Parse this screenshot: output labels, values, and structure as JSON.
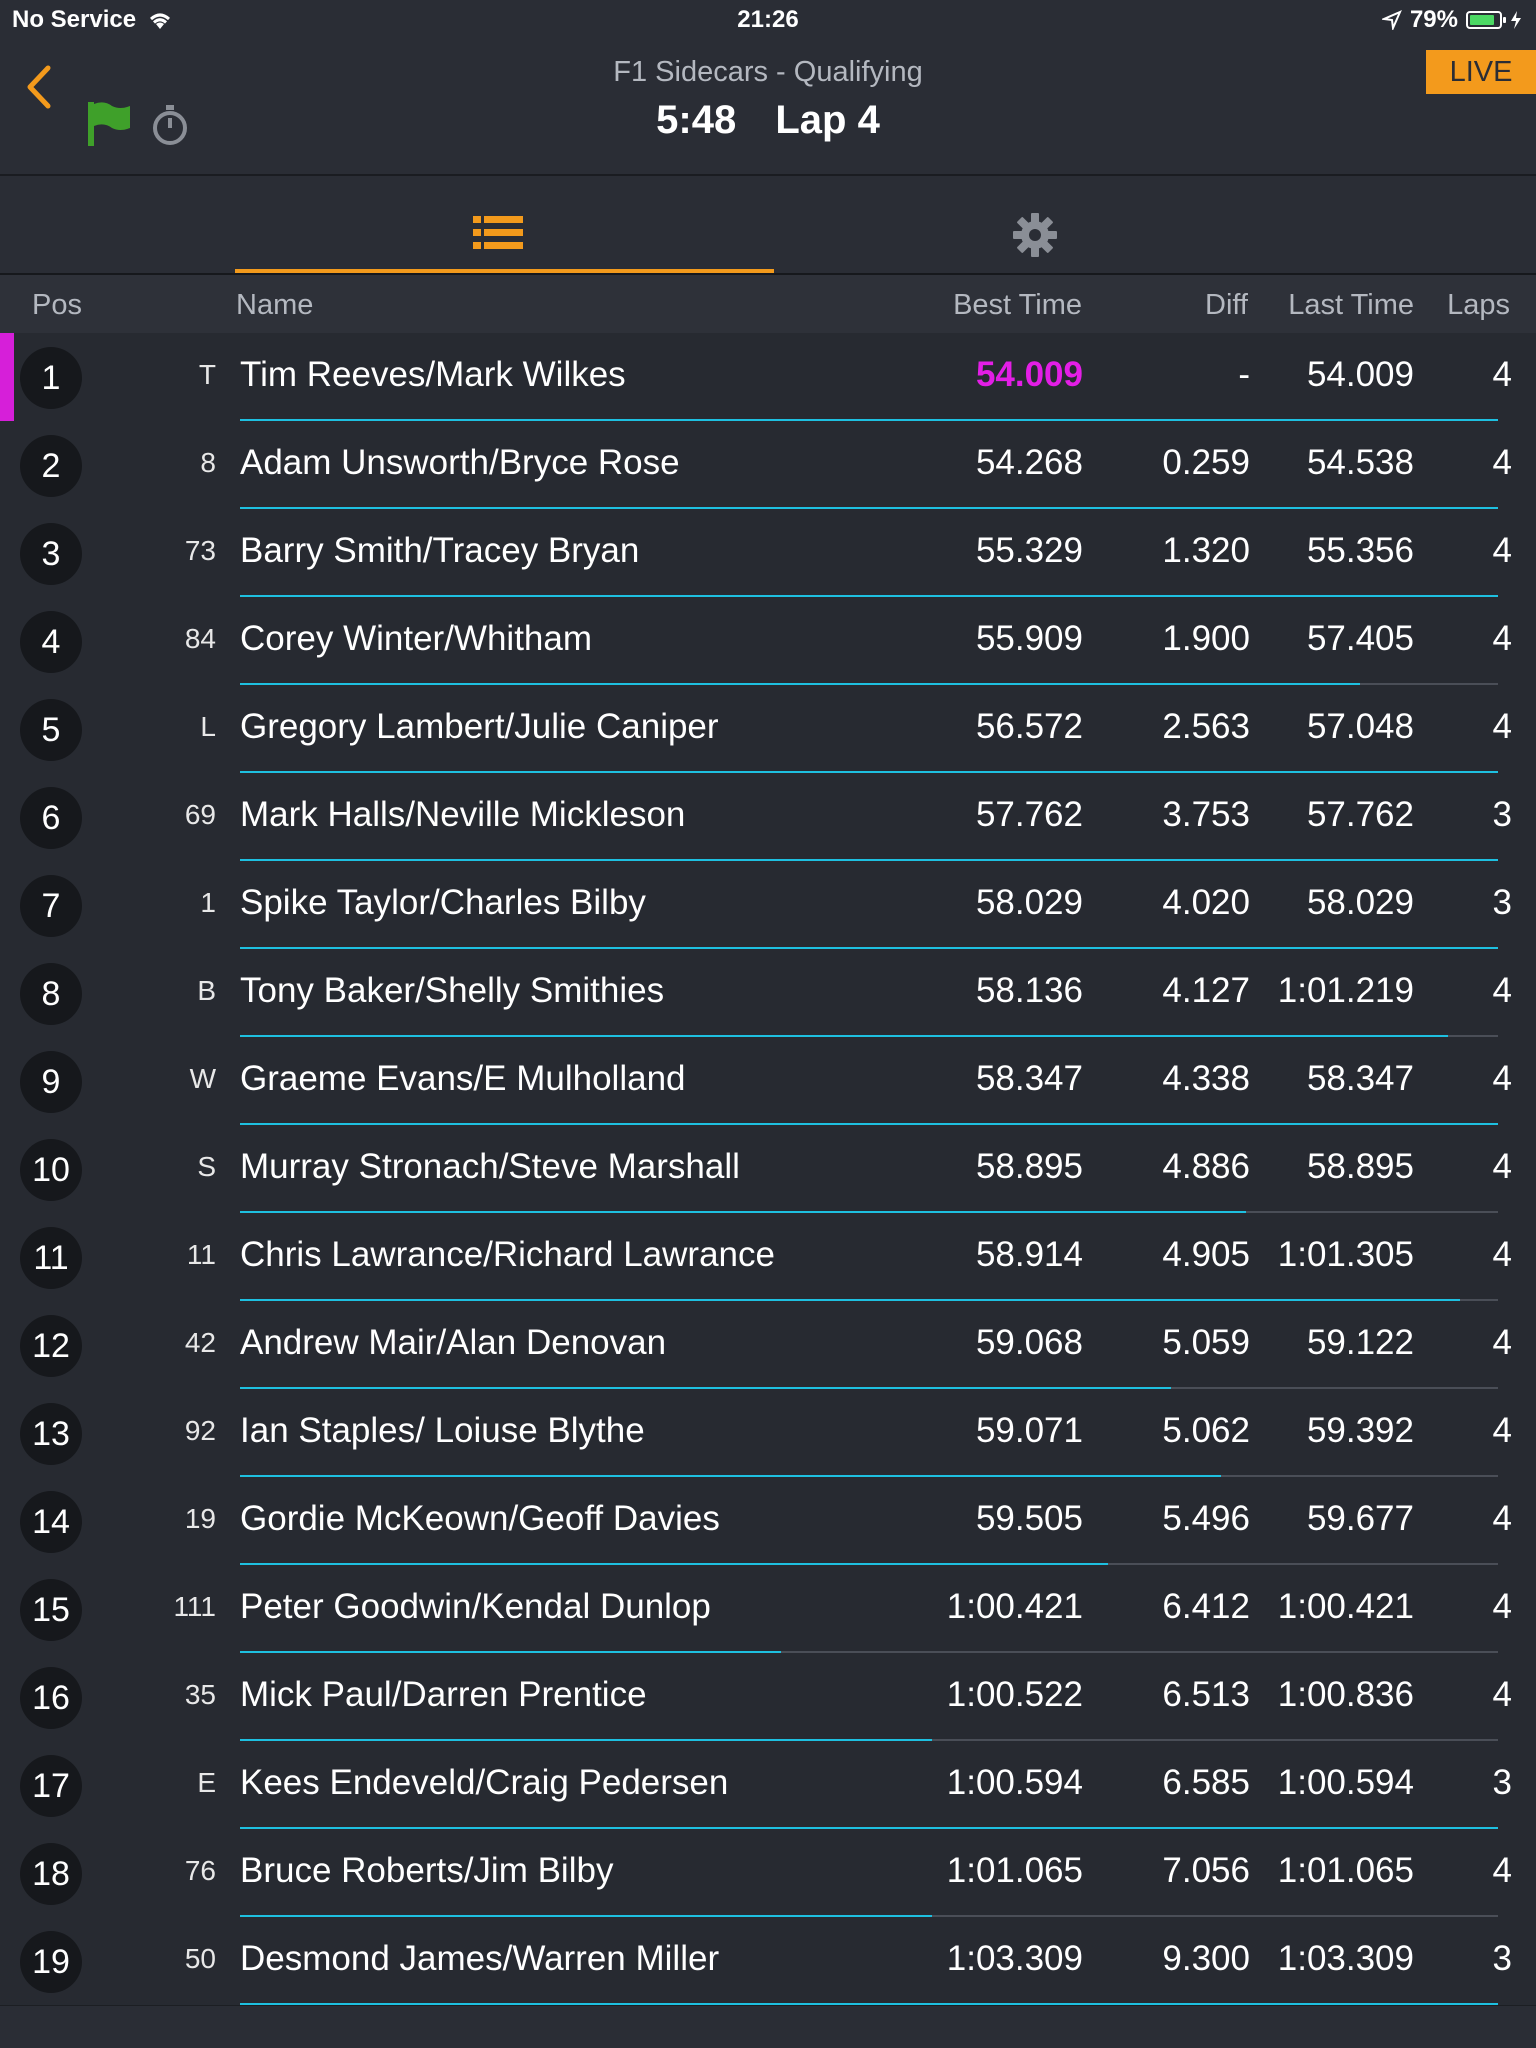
{
  "status": {
    "carrier": "No Service",
    "time": "21:26",
    "battery": "79%"
  },
  "header": {
    "subtitle": "F1 Sidecars - Qualifying",
    "time_remaining": "5:48",
    "lap": "Lap 4",
    "live_label": "LIVE"
  },
  "colors": {
    "accent": "#f39a1c",
    "fastest": "#e31ee6",
    "progress": "#1ec0e0",
    "flag": "#3fa02a"
  },
  "columns": {
    "pos": "Pos",
    "name": "Name",
    "best": "Best Time",
    "diff": "Diff",
    "last": "Last Time",
    "laps": "Laps"
  },
  "rows": [
    {
      "pos": "1",
      "num": "T",
      "name": "Tim Reeves/Mark Wilkes",
      "best": "54.009",
      "diff": "-",
      "last": "54.009",
      "laps": "4",
      "progress": 1.0
    },
    {
      "pos": "2",
      "num": "8",
      "name": "Adam Unsworth/Bryce Rose",
      "best": "54.268",
      "diff": "0.259",
      "last": "54.538",
      "laps": "4",
      "progress": 1.0
    },
    {
      "pos": "3",
      "num": "73",
      "name": "Barry Smith/Tracey Bryan",
      "best": "55.329",
      "diff": "1.320",
      "last": "55.356",
      "laps": "4",
      "progress": 1.0
    },
    {
      "pos": "4",
      "num": "84",
      "name": "Corey Winter/Whitham",
      "best": "55.909",
      "diff": "1.900",
      "last": "57.405",
      "laps": "4",
      "progress": 0.89
    },
    {
      "pos": "5",
      "num": "L",
      "name": "Gregory Lambert/Julie Caniper",
      "best": "56.572",
      "diff": "2.563",
      "last": "57.048",
      "laps": "4",
      "progress": 1.0
    },
    {
      "pos": "6",
      "num": "69",
      "name": "Mark Halls/Neville Mickleson",
      "best": "57.762",
      "diff": "3.753",
      "last": "57.762",
      "laps": "3",
      "progress": 1.0
    },
    {
      "pos": "7",
      "num": "1",
      "name": "Spike Taylor/Charles Bilby",
      "best": "58.029",
      "diff": "4.020",
      "last": "58.029",
      "laps": "3",
      "progress": 1.0
    },
    {
      "pos": "8",
      "num": "B",
      "name": "Tony Baker/Shelly Smithies",
      "best": "58.136",
      "diff": "4.127",
      "last": "1:01.219",
      "laps": "4",
      "progress": 0.96
    },
    {
      "pos": "9",
      "num": "W",
      "name": "Graeme Evans/E Mulholland",
      "best": "58.347",
      "diff": "4.338",
      "last": "58.347",
      "laps": "4",
      "progress": 1.0
    },
    {
      "pos": "10",
      "num": "S",
      "name": "Murray Stronach/Steve Marshall",
      "best": "58.895",
      "diff": "4.886",
      "last": "58.895",
      "laps": "4",
      "progress": 0.8
    },
    {
      "pos": "11",
      "num": "11",
      "name": "Chris Lawrance/Richard Lawrance",
      "best": "58.914",
      "diff": "4.905",
      "last": "1:01.305",
      "laps": "4",
      "progress": 0.97
    },
    {
      "pos": "12",
      "num": "42",
      "name": "Andrew Mair/Alan Denovan",
      "best": "59.068",
      "diff": "5.059",
      "last": "59.122",
      "laps": "4",
      "progress": 0.74
    },
    {
      "pos": "13",
      "num": "92",
      "name": "Ian Staples/ Loiuse Blythe",
      "best": "59.071",
      "diff": "5.062",
      "last": "59.392",
      "laps": "4",
      "progress": 0.78
    },
    {
      "pos": "14",
      "num": "19",
      "name": "Gordie McKeown/Geoff Davies",
      "best": "59.505",
      "diff": "5.496",
      "last": "59.677",
      "laps": "4",
      "progress": 0.69
    },
    {
      "pos": "15",
      "num": "111",
      "name": "Peter Goodwin/Kendal Dunlop",
      "best": "1:00.421",
      "diff": "6.412",
      "last": "1:00.421",
      "laps": "4",
      "progress": 0.43
    },
    {
      "pos": "16",
      "num": "35",
      "name": "Mick Paul/Darren Prentice",
      "best": "1:00.522",
      "diff": "6.513",
      "last": "1:00.836",
      "laps": "4",
      "progress": 0.55
    },
    {
      "pos": "17",
      "num": "E",
      "name": "Kees Endeveld/Craig Pedersen",
      "best": "1:00.594",
      "diff": "6.585",
      "last": "1:00.594",
      "laps": "3",
      "progress": 1.0
    },
    {
      "pos": "18",
      "num": "76",
      "name": "Bruce Roberts/Jim Bilby",
      "best": "1:01.065",
      "diff": "7.056",
      "last": "1:01.065",
      "laps": "4",
      "progress": 0.55
    },
    {
      "pos": "19",
      "num": "50",
      "name": "Desmond James/Warren Miller",
      "best": "1:03.309",
      "diff": "9.300",
      "last": "1:03.309",
      "laps": "3",
      "progress": 1.0
    }
  ]
}
